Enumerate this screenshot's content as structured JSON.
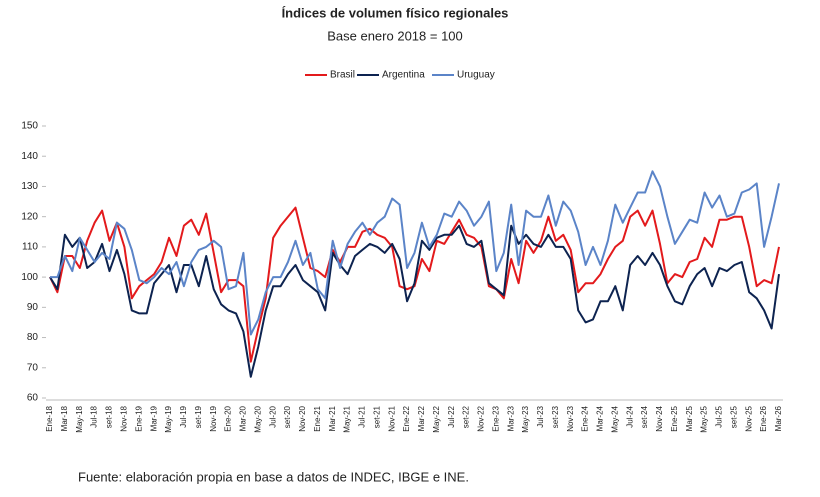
{
  "chart_data": {
    "type": "line",
    "title": "Índices de volumen físico regionales",
    "subtitle": "Base enero 2018 = 100",
    "source": "Fuente: elaboración propia en base a datos de INDEC, IBGE e INE.",
    "categories": [
      "Ene-18",
      null,
      "Mar-18",
      null,
      "May-18",
      null,
      "Jul-18",
      null,
      "set-18",
      null,
      "Nov-18",
      null,
      "Ene-19",
      null,
      "Mar-19",
      null,
      "May-19",
      null,
      "Jul-19",
      null,
      "set-19",
      null,
      "Nov-19",
      null,
      "Ene-20",
      null,
      "Mar-20",
      null,
      "May-20",
      null,
      "Jul-20",
      null,
      "set-20",
      null,
      "Nov-20",
      null,
      "Ene-21",
      null,
      "Mar-21",
      null,
      "May-21",
      null,
      "Jul-21",
      null,
      "set-21",
      null,
      "Nov-21",
      null,
      "Ene-22",
      null,
      "Mar-22",
      null,
      "May-22",
      null,
      "Jul-22",
      null,
      "set-22",
      null,
      "Nov-22",
      null,
      "Ene-23",
      null,
      "Mar-23",
      null,
      "May-23",
      null,
      "Jul-23",
      null,
      "set-23",
      null,
      "Nov-23",
      null,
      "Ene-24",
      null,
      "Mar-24",
      null,
      "May-24",
      null,
      "Jul-24",
      null,
      "set-24",
      null,
      "Nov-24",
      null,
      "Ene-25",
      null,
      "Mar-25",
      null,
      "May-25",
      null,
      "Jul-25",
      null,
      "set-25",
      null,
      "Nov-25",
      null,
      "Ene-26",
      null,
      "Mar-26"
    ],
    "series": [
      {
        "name": "Brasil",
        "color": "#e31a1c",
        "values": [
          100,
          95,
          107,
          107,
          103,
          112,
          118,
          122,
          112,
          118,
          110,
          93,
          97,
          99,
          101,
          105,
          113,
          107,
          117,
          119,
          114,
          121,
          108,
          95,
          99,
          99,
          97,
          72,
          83,
          93,
          113,
          117,
          120,
          123,
          113,
          103,
          102,
          100,
          109,
          105,
          110,
          110,
          115,
          116,
          114,
          113,
          110,
          97,
          96,
          97,
          106,
          102,
          112,
          111,
          115,
          119,
          114,
          113,
          110,
          97,
          96,
          93,
          106,
          98,
          112,
          108,
          112,
          120,
          112,
          114,
          109,
          95,
          98,
          98,
          101,
          106,
          110,
          112,
          120,
          122,
          117,
          122,
          111,
          98,
          101,
          100,
          105,
          106,
          113,
          110,
          119,
          119,
          120,
          120,
          110,
          97,
          99,
          98,
          110
        ]
      },
      {
        "name": "Argentina",
        "color": "#0d2350",
        "values": [
          100,
          96,
          114,
          110,
          113,
          103,
          105,
          111,
          102,
          109,
          101,
          89,
          88,
          88,
          98,
          101,
          104,
          95,
          104,
          104,
          97,
          107,
          96,
          91,
          89,
          88,
          82,
          67,
          77,
          89,
          97,
          97,
          101,
          104,
          99,
          97,
          95,
          89,
          108,
          104,
          101,
          107,
          109,
          111,
          110,
          108,
          111,
          106,
          92,
          98,
          112,
          109,
          113,
          114,
          114,
          117,
          111,
          110,
          112,
          98,
          96,
          94,
          117,
          111,
          114,
          111,
          110,
          114,
          110,
          110,
          106,
          89,
          85,
          86,
          92,
          92,
          97,
          89,
          104,
          107,
          104,
          108,
          104,
          97,
          92,
          91,
          97,
          101,
          103,
          97,
          103,
          102,
          104,
          105,
          95,
          93,
          89,
          83,
          101
        ]
      },
      {
        "name": "Uruguay",
        "color": "#5b84c8",
        "values": [
          100,
          100,
          107,
          102,
          113,
          109,
          105,
          108,
          106,
          118,
          116,
          109,
          99,
          98,
          100,
          103,
          101,
          105,
          97,
          105,
          109,
          110,
          112,
          110,
          96,
          97,
          108,
          81,
          86,
          95,
          100,
          100,
          105,
          112,
          104,
          108,
          96,
          93,
          112,
          103,
          111,
          115,
          118,
          114,
          118,
          120,
          126,
          124,
          103,
          108,
          118,
          110,
          114,
          121,
          120,
          125,
          122,
          117,
          120,
          125,
          102,
          108,
          124,
          104,
          122,
          120,
          120,
          127,
          117,
          125,
          122,
          115,
          104,
          110,
          104,
          112,
          124,
          118,
          123,
          128,
          128,
          135,
          130,
          120,
          111,
          115,
          119,
          118,
          128,
          123,
          127,
          120,
          121,
          128,
          129,
          131,
          110,
          120,
          131
        ]
      }
    ],
    "ylim": [
      60,
      150
    ],
    "yticks": [
      60,
      70,
      80,
      90,
      100,
      110,
      120,
      130,
      140,
      150
    ],
    "legend": "top",
    "grid": false
  }
}
